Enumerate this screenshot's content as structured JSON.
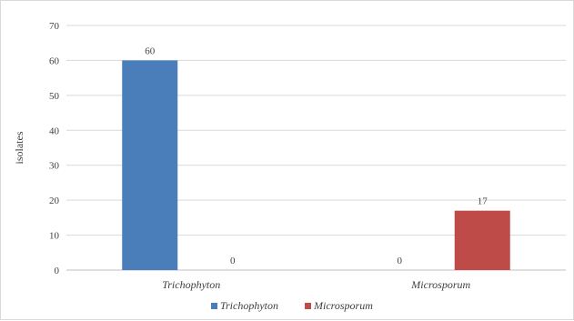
{
  "chart_data": {
    "type": "bar",
    "categories": [
      "Trichophyton",
      "Microsporum"
    ],
    "series": [
      {
        "name": "Trichophyton",
        "values": [
          60,
          0
        ],
        "color": "#4a7ebb"
      },
      {
        "name": "Microsporum",
        "values": [
          0,
          17
        ],
        "color": "#be4b48"
      }
    ],
    "xlabel": "",
    "ylabel": "isolates",
    "ylim": [
      0,
      70
    ],
    "yticks": [
      0,
      10,
      20,
      30,
      40,
      50,
      60,
      70
    ],
    "grid": true,
    "legend_position": "bottom"
  }
}
